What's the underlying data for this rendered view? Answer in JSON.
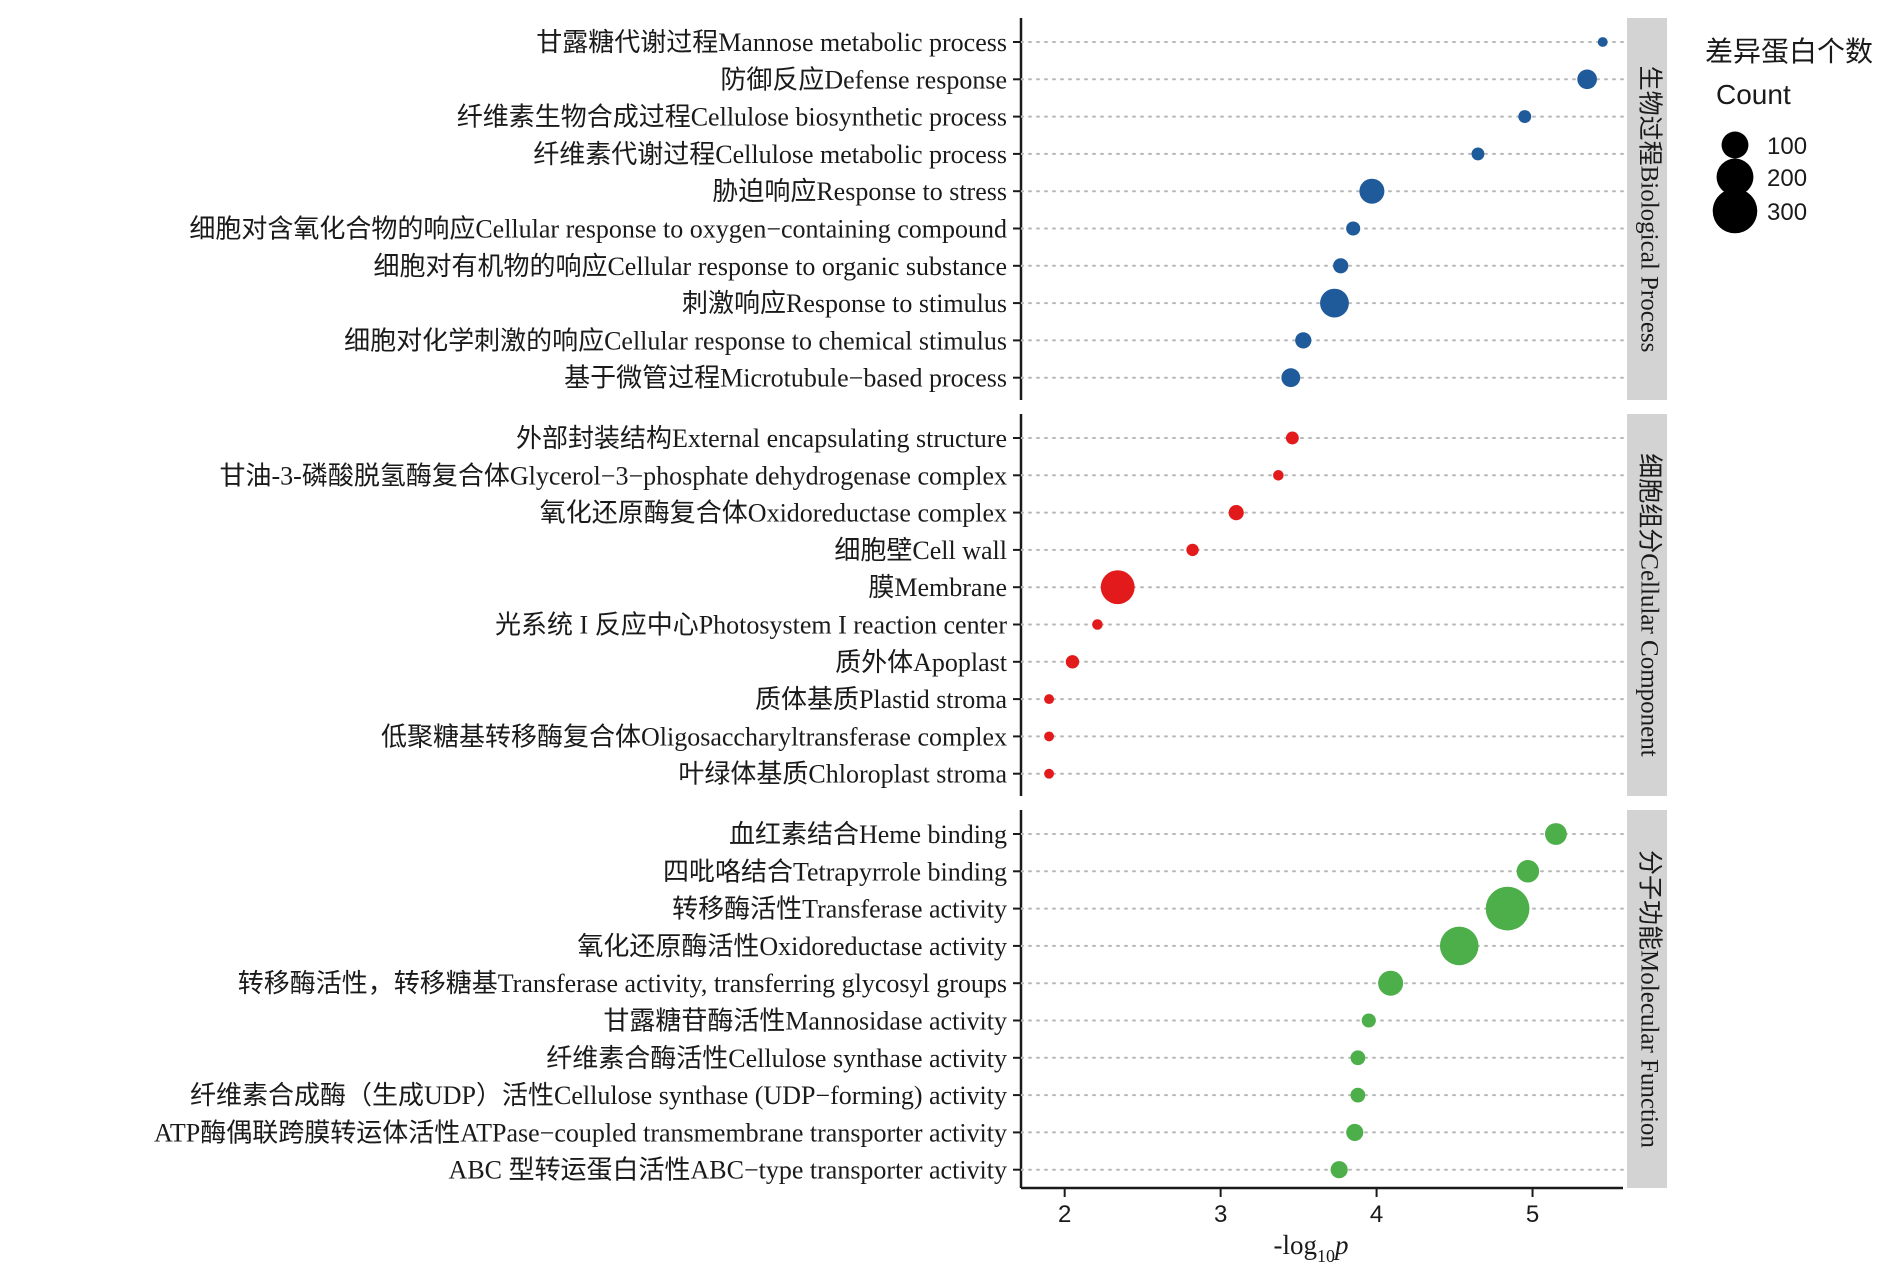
{
  "chart_data": {
    "type": "scatter",
    "title": "",
    "xlabel_parts": [
      "-log",
      "10",
      "p"
    ],
    "xticks": [
      2,
      3,
      4,
      5
    ],
    "xlim": [
      1.72,
      5.58
    ],
    "grid": "dotted horizontal",
    "panels": [
      {
        "strip": "生物过程Biological Process",
        "color": "#1f5a9a",
        "points": [
          {
            "label": "甘露糖代谢过程Mannose metabolic process",
            "x": 5.45,
            "count": 10
          },
          {
            "label": "防御反应Defense response",
            "x": 5.35,
            "count": 55
          },
          {
            "label": "纤维素生物合成过程Cellulose biosynthetic process",
            "x": 4.95,
            "count": 20
          },
          {
            "label": "纤维素代谢过程Cellulose metabolic process",
            "x": 4.65,
            "count": 20
          },
          {
            "label": "胁迫响应Response to stress",
            "x": 3.97,
            "count": 95
          },
          {
            "label": "细胞对含氧化合物的响应Cellular response to oxygen−containing compound",
            "x": 3.85,
            "count": 25
          },
          {
            "label": "细胞对有机物的响应Cellular response to organic substance",
            "x": 3.77,
            "count": 30
          },
          {
            "label": "刺激响应Response to stimulus",
            "x": 3.73,
            "count": 130
          },
          {
            "label": "细胞对化学刺激的响应Cellular response to chemical stimulus",
            "x": 3.53,
            "count": 35
          },
          {
            "label": "基于微管过程Microtubule−based process",
            "x": 3.45,
            "count": 50
          }
        ]
      },
      {
        "strip": "细胞组分Cellular Component",
        "color": "#e31a1c",
        "points": [
          {
            "label": "外部封装结构External encapsulating structure",
            "x": 3.46,
            "count": 20
          },
          {
            "label": "甘油-3-磷酸脱氢酶复合体Glycerol−3−phosphate dehydrogenase complex",
            "x": 3.37,
            "count": 12
          },
          {
            "label": "氧化还原酶复合体Oxidoreductase complex",
            "x": 3.1,
            "count": 30
          },
          {
            "label": "细胞壁Cell wall",
            "x": 2.82,
            "count": 18
          },
          {
            "label": "膜Membrane",
            "x": 2.34,
            "count": 185
          },
          {
            "label": "光系统 I 反应中心Photosystem I reaction center",
            "x": 2.21,
            "count": 12
          },
          {
            "label": "质外体Apoplast",
            "x": 2.05,
            "count": 22
          },
          {
            "label": "质体基质Plastid stroma",
            "x": 1.9,
            "count": 10
          },
          {
            "label": "低聚糖基转移酶复合体Oligosaccharyltransferase complex",
            "x": 1.9,
            "count": 10
          },
          {
            "label": "叶绿体基质Chloroplast stroma",
            "x": 1.9,
            "count": 10
          }
        ]
      },
      {
        "strip": "分子功能Molecular Function",
        "color": "#4daf4a",
        "points": [
          {
            "label": "血红素结合Heme binding",
            "x": 5.15,
            "count": 70
          },
          {
            "label": "四吡咯结合Tetrapyrrole binding",
            "x": 4.97,
            "count": 75
          },
          {
            "label": "转移酶活性Transferase activity",
            "x": 4.84,
            "count": 320
          },
          {
            "label": "氧化还原酶活性Oxidoreductase activity",
            "x": 4.53,
            "count": 245
          },
          {
            "label": "转移酶活性，转移糖基Transferase activity, transferring glycosyl groups",
            "x": 4.09,
            "count": 95
          },
          {
            "label": "甘露糖苷酶活性Mannosidase activity",
            "x": 3.95,
            "count": 25
          },
          {
            "label": "纤维素合酶活性Cellulose synthase activity",
            "x": 3.88,
            "count": 28
          },
          {
            "label": "纤维素合成酶（生成UDP）活性Cellulose synthase (UDP−forming) activity",
            "x": 3.88,
            "count": 28
          },
          {
            "label": "ATP酶偶联跨膜转运体活性ATPase−coupled transmembrane transporter activity",
            "x": 3.86,
            "count": 40
          },
          {
            "label": "ABC 型转运蛋白活性ABC−type transporter activity",
            "x": 3.76,
            "count": 40
          }
        ]
      }
    ],
    "legend": {
      "title": "差异蛋白个数",
      "subtitle": "Count",
      "entries": [
        {
          "label": "100",
          "count": 100
        },
        {
          "label": "200",
          "count": 200
        },
        {
          "label": "300",
          "count": 300
        }
      ],
      "placement": "right"
    }
  }
}
